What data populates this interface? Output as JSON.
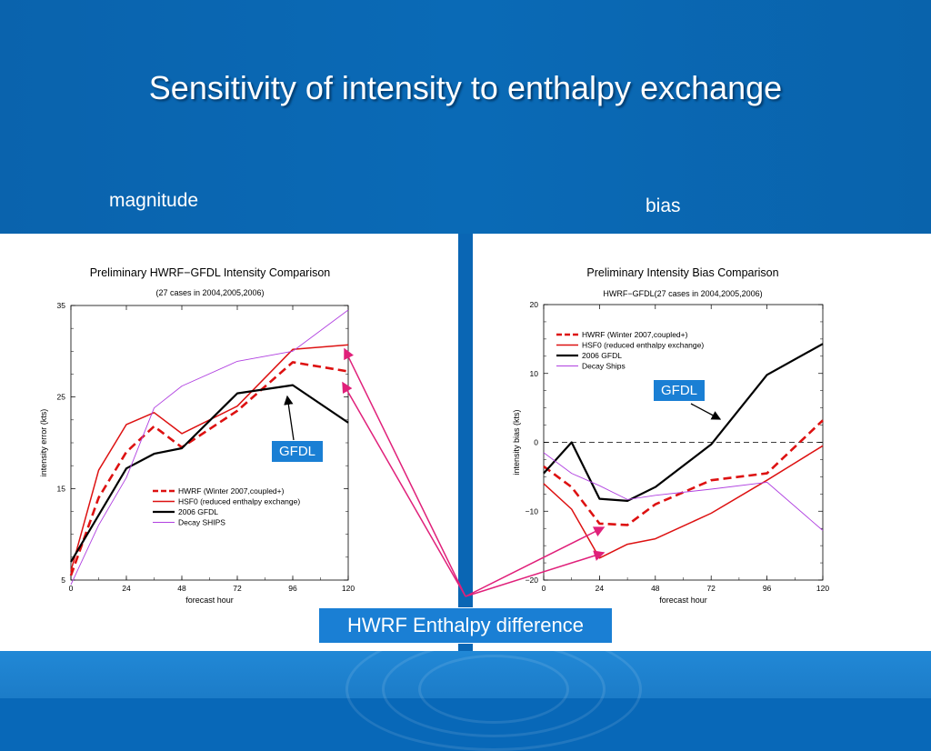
{
  "slide": {
    "title": "Sensitivity of intensity to enthalpy exchange",
    "left_label": "magnitude",
    "right_label": "bias",
    "hwrf_box": "HWRF Enthalpy difference",
    "callout_left": "GFDL",
    "callout_right": "GFDL"
  },
  "colors": {
    "background": "#0868b8",
    "hwrf": "#dd1111",
    "hsf0": "#dd1111",
    "gfdl": "#000000",
    "ships": "#b040e0",
    "arrow": "#e0207a",
    "callout_bg": "#1a7fd4"
  },
  "chart_data": [
    {
      "type": "line",
      "title": "Preliminary HWRF−GFDL Intensity Comparison",
      "subtitle": "(27 cases in 2004,2005,2006)",
      "xlabel": "forecast hour",
      "ylabel": "intensity error (kts)",
      "xlim": [
        0,
        120
      ],
      "ylim": [
        5,
        35
      ],
      "xticks": [
        0,
        24,
        48,
        72,
        96,
        120
      ],
      "yticks": [
        5,
        15,
        25,
        35
      ],
      "grid": false,
      "legend_position": "lower-center",
      "series": [
        {
          "name": "HWRF (Winter 2007,coupled+)",
          "style": "dashed-thick",
          "color": "#dd1111",
          "x": [
            0,
            12,
            24,
            36,
            48,
            72,
            96,
            120
          ],
          "y": [
            5.5,
            14,
            19,
            21.8,
            19.5,
            23.5,
            28.8,
            27.8
          ]
        },
        {
          "name": "HSF0 (reduced enthalpy exchange)",
          "style": "solid",
          "color": "#dd1111",
          "x": [
            0,
            12,
            24,
            36,
            48,
            72,
            96,
            120
          ],
          "y": [
            6,
            17,
            22,
            23.3,
            21,
            24,
            30.2,
            30.7
          ]
        },
        {
          "name": "2006 GFDL",
          "style": "solid-thick",
          "color": "#000000",
          "x": [
            0,
            24,
            36,
            48,
            72,
            96,
            120
          ],
          "y": [
            7,
            17.2,
            18.8,
            19.4,
            25.4,
            26.3,
            22.2
          ]
        },
        {
          "name": "Decay SHIPS",
          "style": "solid-thin",
          "color": "#b040e0",
          "x": [
            0,
            12,
            24,
            36,
            48,
            72,
            96,
            120
          ],
          "y": [
            4.5,
            11,
            16.2,
            23.8,
            26.2,
            28.9,
            30,
            34.5
          ]
        }
      ]
    },
    {
      "type": "line",
      "title": "Preliminary     Intensity Bias Comparison",
      "subtitle": "HWRF−GFDL(27 cases in 2004,2005,2006)",
      "xlabel": "forecast hour",
      "ylabel": "intensity bias (kts)",
      "xlim": [
        0,
        120
      ],
      "ylim": [
        -20,
        20
      ],
      "xticks": [
        0,
        24,
        48,
        72,
        96,
        120
      ],
      "yticks": [
        -20,
        -10,
        0,
        10,
        20
      ],
      "ytick_labels": [
        "−20",
        "−10",
        "0",
        "10",
        "20"
      ],
      "zero_line": true,
      "grid": false,
      "legend_position": "upper-left",
      "series": [
        {
          "name": "HWRF (Winter 2007,coupled+)",
          "style": "dashed-thick",
          "color": "#dd1111",
          "x": [
            0,
            12,
            24,
            36,
            48,
            72,
            96,
            120
          ],
          "y": [
            -3.5,
            -6.5,
            -11.8,
            -12,
            -9,
            -5.5,
            -4.5,
            3.2
          ]
        },
        {
          "name": "HSF0 (reduced enthalpy exchange)",
          "style": "solid",
          "color": "#dd1111",
          "x": [
            0,
            12,
            24,
            36,
            48,
            72,
            96,
            120
          ],
          "y": [
            -6,
            -9.7,
            -16.8,
            -14.8,
            -14,
            -10.3,
            -5.5,
            -0.5
          ]
        },
        {
          "name": "2006 GFDL",
          "style": "solid-thick",
          "color": "#000000",
          "x": [
            0,
            12,
            24,
            36,
            48,
            72,
            96,
            120
          ],
          "y": [
            -4.5,
            0,
            -8.2,
            -8.5,
            -6.5,
            -0.3,
            9.8,
            14.3
          ]
        },
        {
          "name": "Decay Ships",
          "style": "solid-thin",
          "color": "#b040e0",
          "x": [
            0,
            12,
            24,
            36,
            48,
            72,
            96,
            120
          ],
          "y": [
            -1.5,
            -4.5,
            -6.3,
            -8.3,
            -7.7,
            -6.8,
            -5.8,
            -12.8
          ]
        }
      ]
    }
  ]
}
